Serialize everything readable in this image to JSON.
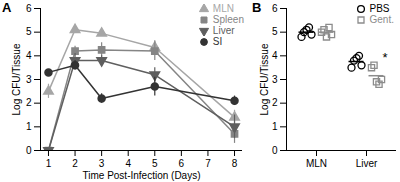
{
  "chart_data": [
    {
      "type": "line",
      "title": "A",
      "x": [
        1,
        2,
        3,
        5,
        8
      ],
      "xlabel": "Time Post-Infection (Days)",
      "ylabel": "Log CFU/Tissue",
      "xlim": [
        0.7,
        8.3
      ],
      "xticks": [
        1,
        2,
        3,
        4,
        5,
        6,
        7,
        8
      ],
      "ylim": [
        0,
        6
      ],
      "yticks": [
        0,
        1,
        2,
        3,
        4,
        5,
        6
      ],
      "legend": "top-right",
      "series": [
        {
          "name": "MLN",
          "color": "#a6a6a6",
          "marker": "triangle-up",
          "values": [
            2.5,
            5.1,
            4.95,
            4.35,
            1.4
          ],
          "error": [
            0.3,
            0.1,
            0.1,
            0.3,
            0.3
          ]
        },
        {
          "name": "Spleen",
          "color": "#858585",
          "marker": "square",
          "values": [
            0,
            4.2,
            4.25,
            4.2,
            0.7
          ],
          "error": [
            0,
            0.2,
            0.3,
            0.4,
            0.4
          ]
        },
        {
          "name": "Liver",
          "color": "#5f5f5f",
          "marker": "triangle-down",
          "values": [
            0,
            3.8,
            3.8,
            3.2,
            1.0
          ],
          "error": [
            0,
            0.3,
            0.2,
            0.3,
            0.5
          ]
        },
        {
          "name": "SI",
          "color": "#333333",
          "marker": "circle",
          "values": [
            3.3,
            3.6,
            2.2,
            2.7,
            2.1
          ],
          "error": [
            0.1,
            0.2,
            0.2,
            0.4,
            0.2
          ]
        }
      ]
    },
    {
      "type": "scatter",
      "title": "B",
      "categories": [
        "MLN",
        "Liver"
      ],
      "ylabel": "Log CFU/Tissue",
      "ylim": [
        0,
        6
      ],
      "yticks": [
        0,
        1,
        2,
        3,
        4,
        5,
        6
      ],
      "legend": "top-right",
      "series": [
        {
          "name": "PBS",
          "color": "#000000",
          "marker": "circle",
          "values": [
            [
              4.8,
              5.0,
              5.1,
              5.2,
              4.9
            ],
            [
              3.5,
              3.8,
              3.9,
              4.0,
              3.6
            ]
          ]
        },
        {
          "name": "Gent.",
          "color": "#8c8c8c",
          "marker": "square",
          "values": [
            [
              5.0,
              5.1,
              4.8,
              5.2,
              4.9
            ],
            [
              3.5,
              3.6,
              2.9,
              2.8,
              3.0
            ]
          ]
        }
      ],
      "annotations": [
        {
          "text": "*",
          "category": "Liver",
          "series": "Gent.",
          "y": 3.9
        }
      ]
    }
  ]
}
